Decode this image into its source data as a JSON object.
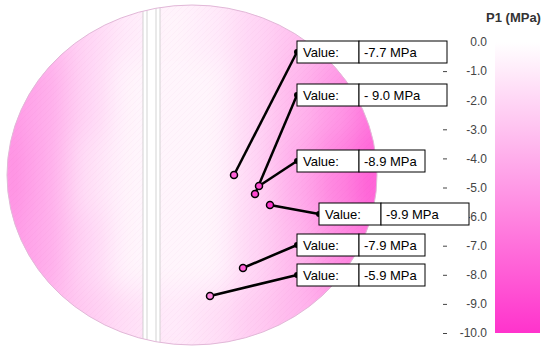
{
  "chart_data": {
    "type": "heatmap",
    "color": "#ff33cc",
    "colorbar_title": "P1 (MPa)",
    "colorbar_range": [
      -10,
      0
    ],
    "colorbar_ticks": [
      {
        "value": 0,
        "label": "0.0"
      },
      {
        "value": -1,
        "label": "-1.0"
      },
      {
        "value": -2,
        "label": "-2.0"
      },
      {
        "value": -3,
        "label": "-3.0"
      },
      {
        "value": -4,
        "label": "-4.0"
      },
      {
        "value": -5,
        "label": "-5.0"
      },
      {
        "value": -6,
        "label": "-6.0"
      },
      {
        "value": -7,
        "label": "-7.0"
      },
      {
        "value": -8,
        "label": "-8.0"
      },
      {
        "value": -9,
        "label": "-9.0"
      },
      {
        "value": -10,
        "label": "-10.0"
      }
    ],
    "cells": [
      [
        -4,
        -3.5,
        -2,
        -1,
        -0.5,
        -1,
        -2,
        -3,
        -4,
        -5
      ],
      [
        -5,
        -4,
        -2,
        -0.5,
        -0.5,
        -0.5,
        -2,
        -3.5,
        -5,
        -7
      ],
      [
        -5.5,
        -4,
        -1.5,
        -0.5,
        -0.5,
        -0.5,
        -2,
        -4,
        -6,
        -8
      ],
      [
        -5,
        -4,
        -2,
        -0.5,
        -0.5,
        -0.5,
        -2,
        -3.5,
        -5.5,
        -7
      ],
      [
        -4,
        -3.5,
        -2.5,
        -1.5,
        -1,
        -1.5,
        -2.5,
        -3.5,
        -4.5,
        -5
      ]
    ],
    "annotations": [
      {
        "text": "Value:",
        "value": -7.7,
        "value_label": "-7.7 MPa"
      },
      {
        "text": "Value:",
        "value": -9.0,
        "value_label": "- 9.0 MPa"
      },
      {
        "text": "Value:",
        "value": -8.9,
        "value_label": "-8.9 MPa"
      },
      {
        "text": "Value:",
        "value": -9.9,
        "value_label": "-9.9 MPa"
      },
      {
        "text": "Value:",
        "value": -7.9,
        "value_label": "-7.9 MPa"
      },
      {
        "text": "Value:",
        "value": -5.9,
        "value_label": "-5.9 MPa"
      }
    ]
  }
}
